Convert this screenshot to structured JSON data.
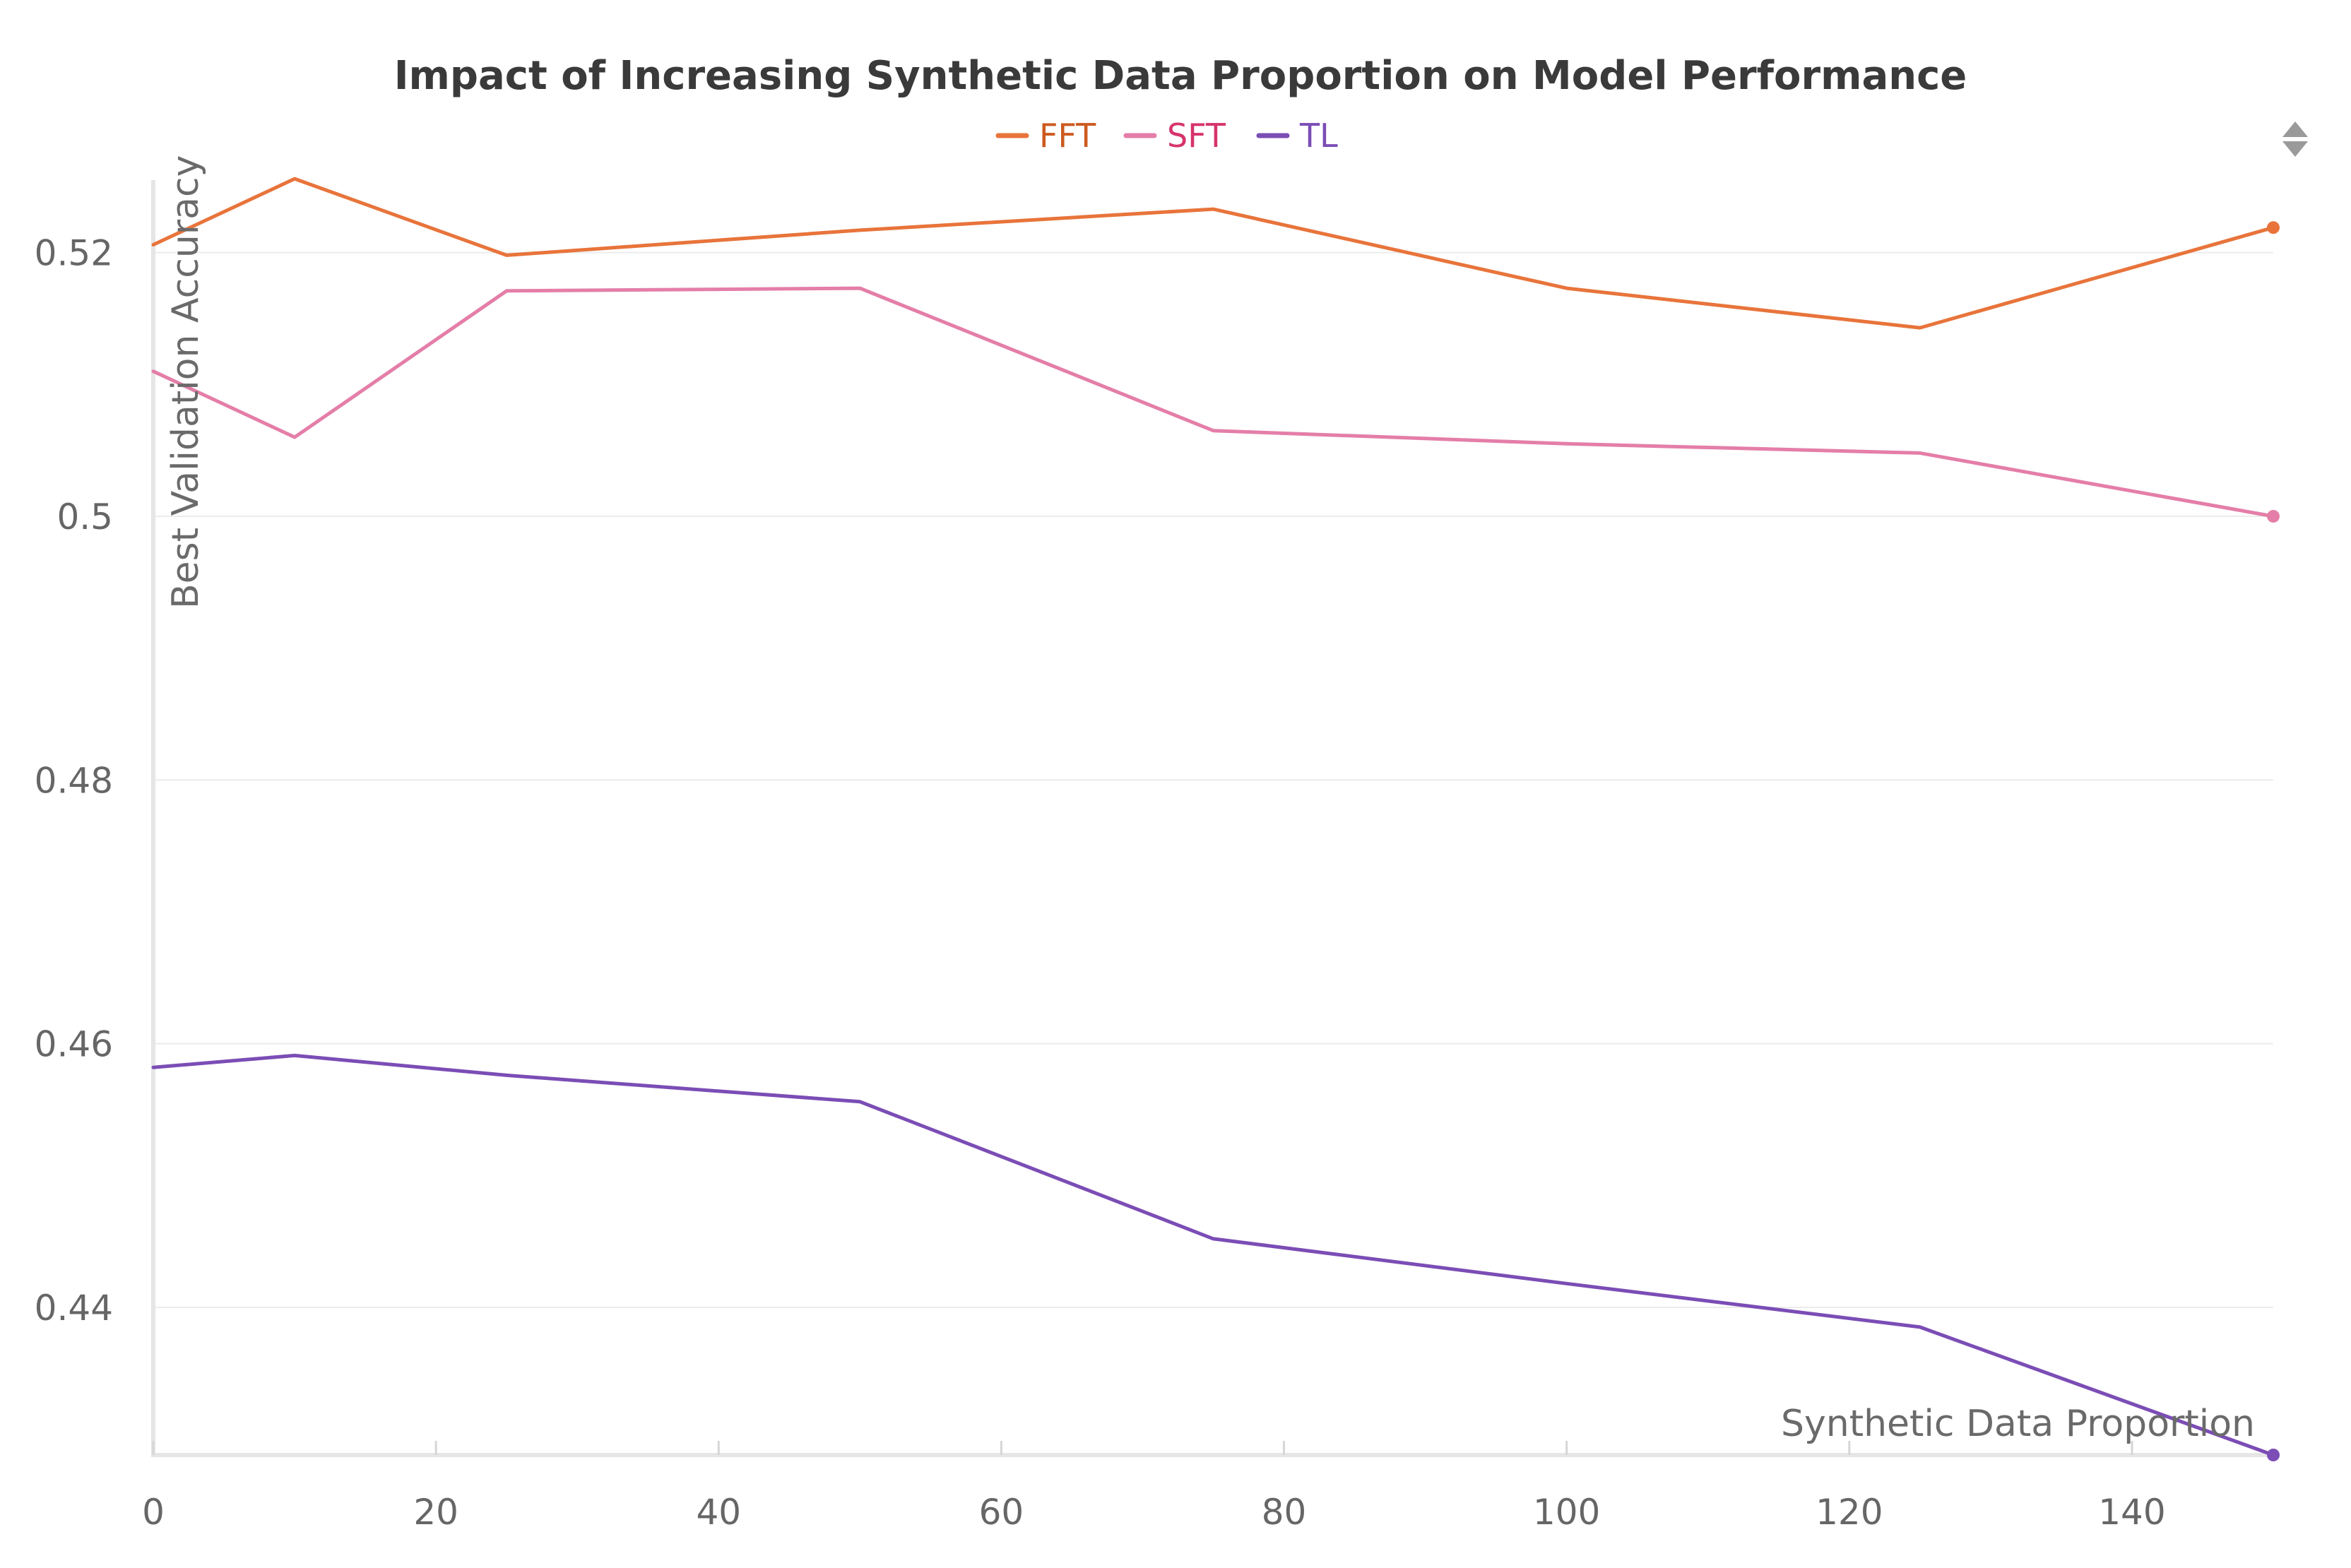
{
  "chart_data": {
    "type": "line",
    "title": "Impact of Increasing Synthetic Data Proportion on Model Performance",
    "xlabel": "Synthetic Data Proportion",
    "ylabel": "Best Validation Accuracy",
    "xlim": [
      0,
      150
    ],
    "ylim": [
      0.4288,
      0.5255
    ],
    "x_ticks": [
      0,
      20,
      40,
      60,
      80,
      100,
      120,
      140
    ],
    "x_tick_labels": [
      "0",
      "20",
      "40",
      "60",
      "80",
      "100",
      "120",
      "140"
    ],
    "y_ticks": [
      0.44,
      0.46,
      0.48,
      0.5,
      0.52
    ],
    "y_tick_labels": [
      "0.44",
      "0.46",
      "0.48",
      "0.5",
      "0.52"
    ],
    "grid": "horizontal",
    "legend_position": "top-center",
    "x": [
      0,
      10,
      25,
      50,
      75,
      100,
      125,
      150
    ],
    "series": [
      {
        "name": "FFT",
        "color": "#E8743B",
        "label_color": "#CC5A1E",
        "values": [
          0.5206,
          0.5256,
          0.5198,
          0.5217,
          0.5233,
          0.5173,
          0.5143,
          0.5219
        ]
      },
      {
        "name": "SFT",
        "color": "#E47EA8",
        "label_color": "#D6336C",
        "values": [
          0.511,
          0.506,
          0.5171,
          0.5173,
          0.5065,
          0.5055,
          0.5048,
          0.5
        ]
      },
      {
        "name": "TL",
        "color": "#7B4DB5",
        "label_color": "#7B4DB5",
        "values": [
          0.4582,
          0.4591,
          0.4576,
          0.4556,
          0.4452,
          0.4418,
          0.4385,
          0.4288
        ]
      }
    ]
  },
  "toolbar": {
    "menu_icon": "expand-collapse-icon"
  }
}
